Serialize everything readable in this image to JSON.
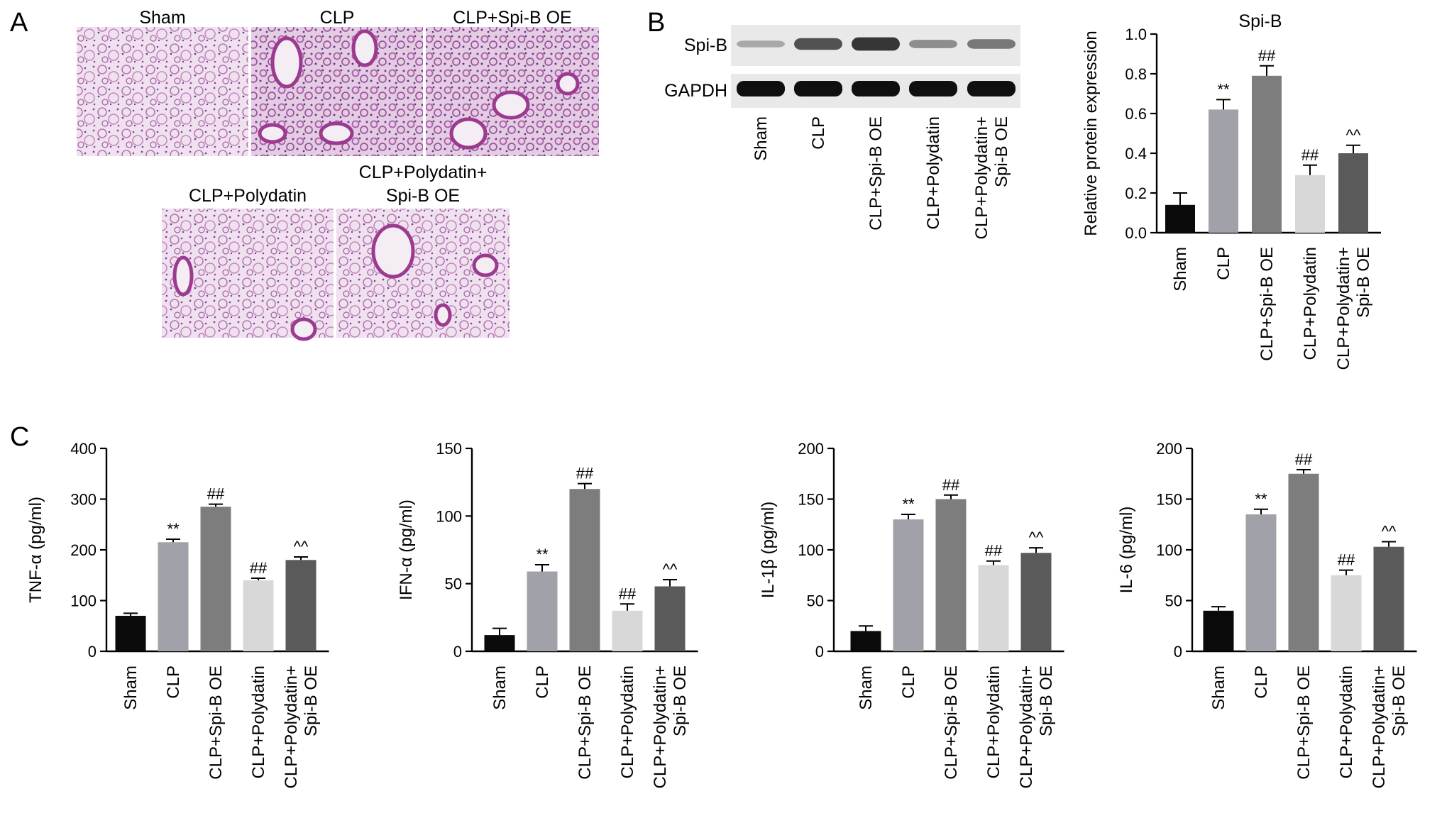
{
  "panel_labels": [
    "A",
    "B",
    "C"
  ],
  "histology": {
    "titles": [
      "Sham",
      "CLP",
      "CLP+Spi-B OE",
      "CLP+Polydatin",
      "CLP+Polydatin+",
      "Spi-B OE"
    ]
  },
  "western_blot": {
    "bands": [
      "Spi-B",
      "GAPDH"
    ],
    "lanes": [
      [
        "Sham"
      ],
      [
        "CLP"
      ],
      [
        "CLP+Spi-B OE"
      ],
      [
        "CLP+Polydatin"
      ],
      [
        "CLP+Polydatin+",
        "Spi-B OE"
      ]
    ],
    "spib_band_intensity": [
      0.12,
      0.62,
      0.78,
      0.28,
      0.4
    ],
    "gapdh_band_intensity": [
      1,
      1,
      1,
      1,
      1
    ]
  },
  "chart_data": [
    {
      "type": "bar",
      "title": "Spi-B",
      "ylabel": "Relative protein expression",
      "ylabel_html": "Relative protein expression",
      "categories": [
        [
          "Sham"
        ],
        [
          "CLP"
        ],
        [
          "CLP+Spi-B OE"
        ],
        [
          "CLP+Polydatin"
        ],
        [
          "CLP+Polydatin+",
          "Spi-B OE"
        ]
      ],
      "values": [
        0.14,
        0.62,
        0.79,
        0.29,
        0.4
      ],
      "errors": [
        0.06,
        0.05,
        0.05,
        0.05,
        0.04
      ],
      "annotations": [
        "",
        "**",
        "##",
        "##",
        "^^"
      ],
      "ylim": [
        0,
        1.0
      ],
      "yticks": [
        0.0,
        0.2,
        0.4,
        0.6,
        0.8,
        1.0
      ],
      "ytick_labels": [
        "0.0",
        "0.2",
        "0.4",
        "0.6",
        "0.8",
        "1.0"
      ],
      "colors": [
        "#0a0a0a",
        "#a1a1a9",
        "#7d7d7d",
        "#d8d8d8",
        "#5a5a5a"
      ]
    },
    {
      "type": "bar",
      "title": "",
      "ylabel": "TNF-α (pg/ml)",
      "categories": [
        [
          "Sham"
        ],
        [
          "CLP"
        ],
        [
          "CLP+Spi-B OE"
        ],
        [
          "CLP+Polydatin"
        ],
        [
          "CLP+Polydatin+",
          "Spi-B OE"
        ]
      ],
      "values": [
        70,
        215,
        285,
        140,
        180
      ],
      "errors": [
        5,
        6,
        5,
        4,
        6
      ],
      "annotations": [
        "",
        "**",
        "##",
        "##",
        "^^"
      ],
      "ylim": [
        0,
        400
      ],
      "yticks": [
        0,
        100,
        200,
        300,
        400
      ],
      "ytick_labels": [
        "0",
        "100",
        "200",
        "300",
        "400"
      ],
      "colors": [
        "#0a0a0a",
        "#a1a1a9",
        "#7d7d7d",
        "#d8d8d8",
        "#5a5a5a"
      ]
    },
    {
      "type": "bar",
      "title": "",
      "ylabel": "IFN-α (pg/ml)",
      "categories": [
        [
          "Sham"
        ],
        [
          "CLP"
        ],
        [
          "CLP+Spi-B OE"
        ],
        [
          "CLP+Polydatin"
        ],
        [
          "CLP+Polydatin+",
          "Spi-B OE"
        ]
      ],
      "values": [
        12,
        59,
        120,
        30,
        48
      ],
      "errors": [
        5,
        5,
        4,
        5,
        5
      ],
      "annotations": [
        "",
        "**",
        "##",
        "##",
        "^^"
      ],
      "ylim": [
        0,
        150
      ],
      "yticks": [
        0,
        50,
        100,
        150
      ],
      "ytick_labels": [
        "0",
        "50",
        "100",
        "150"
      ],
      "colors": [
        "#0a0a0a",
        "#a1a1a9",
        "#7d7d7d",
        "#d8d8d8",
        "#5a5a5a"
      ]
    },
    {
      "type": "bar",
      "title": "",
      "ylabel": "IL-1β (pg/ml)",
      "categories": [
        [
          "Sham"
        ],
        [
          "CLP"
        ],
        [
          "CLP+Spi-B OE"
        ],
        [
          "CLP+Polydatin"
        ],
        [
          "CLP+Polydatin+",
          "Spi-B OE"
        ]
      ],
      "values": [
        20,
        130,
        150,
        85,
        97
      ],
      "errors": [
        5,
        5,
        4,
        4,
        5
      ],
      "annotations": [
        "",
        "**",
        "##",
        "##",
        "^^"
      ],
      "ylim": [
        0,
        200
      ],
      "yticks": [
        0,
        50,
        100,
        150,
        200
      ],
      "ytick_labels": [
        "0",
        "50",
        "100",
        "150",
        "200"
      ],
      "colors": [
        "#0a0a0a",
        "#a1a1a9",
        "#7d7d7d",
        "#d8d8d8",
        "#5a5a5a"
      ]
    },
    {
      "type": "bar",
      "title": "",
      "ylabel": "IL-6 (pg/ml)",
      "categories": [
        [
          "Sham"
        ],
        [
          "CLP"
        ],
        [
          "CLP+Spi-B OE"
        ],
        [
          "CLP+Polydatin"
        ],
        [
          "CLP+Polydatin+",
          "Spi-B OE"
        ]
      ],
      "values": [
        40,
        135,
        175,
        75,
        103
      ],
      "errors": [
        4,
        5,
        4,
        5,
        5
      ],
      "annotations": [
        "",
        "**",
        "##",
        "##",
        "^^"
      ],
      "ylim": [
        0,
        200
      ],
      "yticks": [
        0,
        50,
        100,
        150,
        200
      ],
      "ytick_labels": [
        "0",
        "50",
        "100",
        "150",
        "200"
      ],
      "colors": [
        "#0a0a0a",
        "#a1a1a9",
        "#7d7d7d",
        "#d8d8d8",
        "#5a5a5a"
      ]
    }
  ]
}
